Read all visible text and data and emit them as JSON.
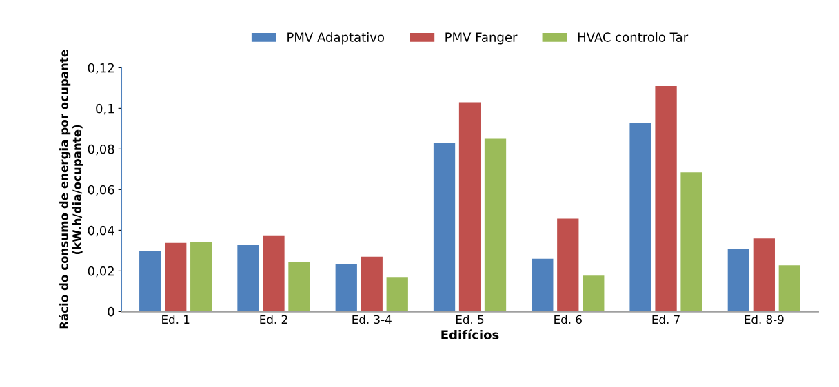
{
  "chart_data": {
    "type": "bar",
    "xlabel": "Edifícios",
    "ylabel": "Rácio do consumo de energia por ocupante (kW.h/dia/ocupante)",
    "categories": [
      "Ed. 1",
      "Ed. 2",
      "Ed. 3-4",
      "Ed. 5",
      "Ed. 6",
      "Ed. 7",
      "Ed. 8-9"
    ],
    "series": [
      {
        "name": "PMV Adaptativo",
        "color": "#4f81bd",
        "values": [
          0.03,
          0.0327,
          0.0235,
          0.083,
          0.026,
          0.0927,
          0.031
        ]
      },
      {
        "name": "PMV Fanger",
        "color": "#c0504d",
        "values": [
          0.0338,
          0.0375,
          0.027,
          0.103,
          0.0457,
          0.111,
          0.036
        ]
      },
      {
        "name": "HVAC controlo Tar",
        "color": "#9bbb59",
        "values": [
          0.0344,
          0.0245,
          0.017,
          0.085,
          0.0177,
          0.0685,
          0.0228
        ]
      }
    ],
    "ylim": [
      0,
      0.12
    ],
    "yticks": [
      0,
      {
        "value": 0.02,
        "label": "0,02"
      },
      {
        "value": 0.04,
        "label": "0,04"
      },
      {
        "value": 0.06,
        "label": "0,06"
      },
      {
        "value": 0.08,
        "label": "0,08"
      },
      {
        "value": 0.1,
        "label": "0,1"
      },
      {
        "value": 0.12,
        "label": "0,12"
      }
    ],
    "grid": false,
    "legend": "top"
  }
}
